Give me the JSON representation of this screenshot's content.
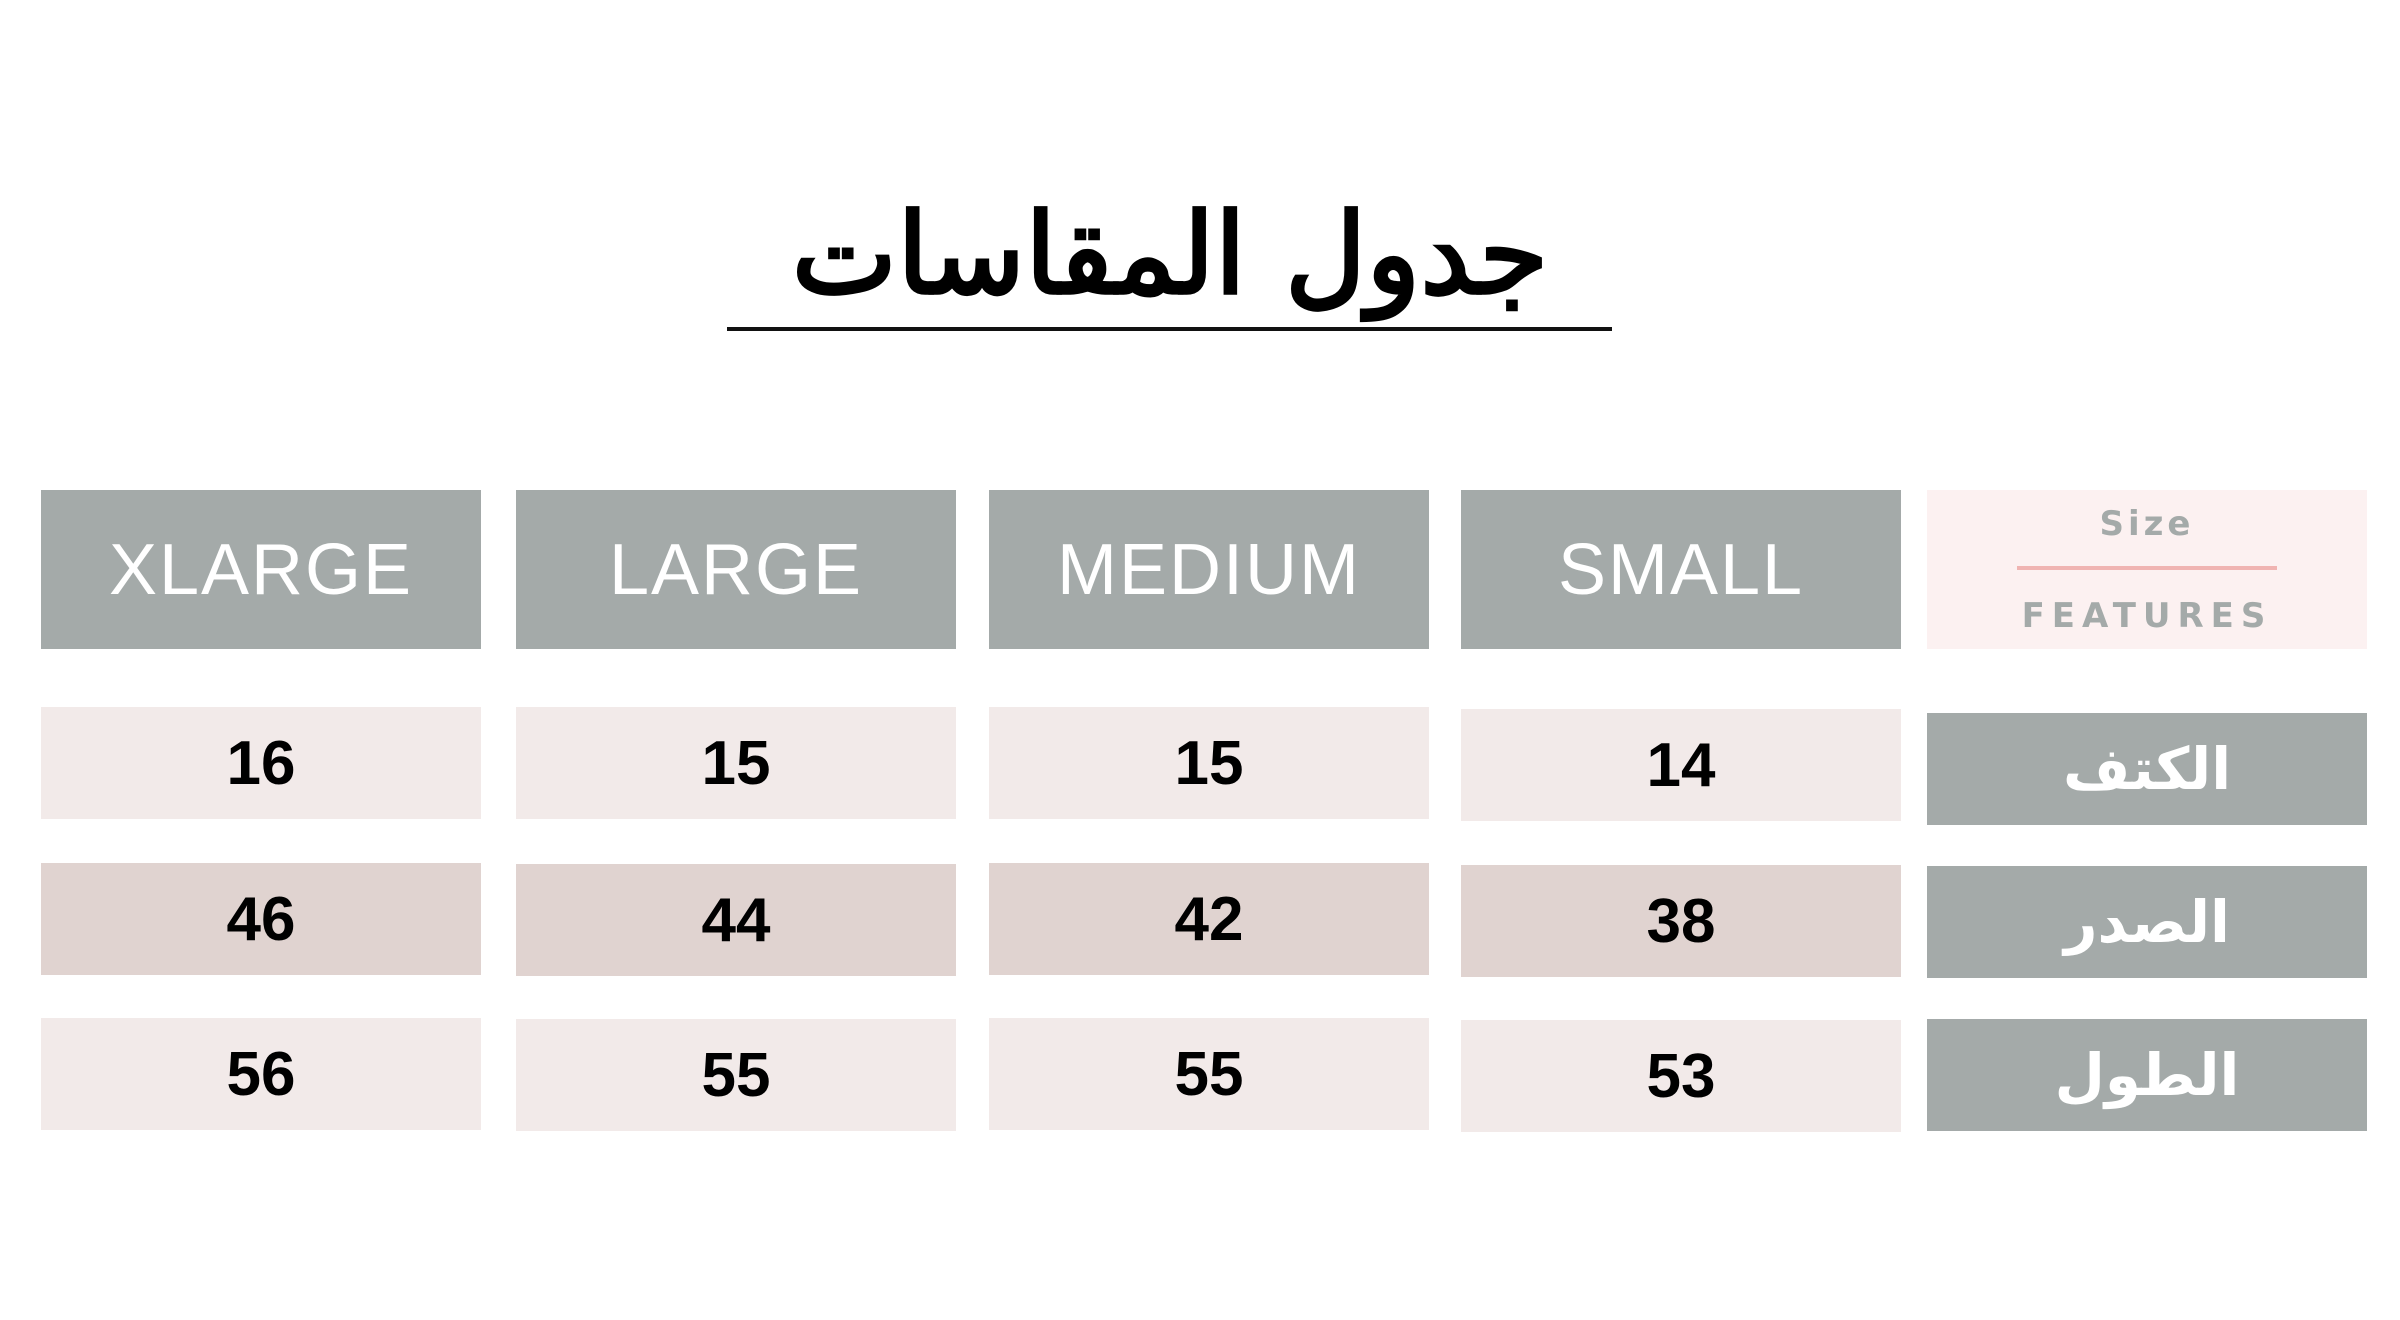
{
  "title": "جدول المقاسات",
  "corner": {
    "top": "Size",
    "bottom": "FEATURES"
  },
  "sizes": [
    "XLARGE",
    "LARGE",
    "MEDIUM",
    "SMALL"
  ],
  "features": [
    "الكتف",
    "الصدر",
    "الطول"
  ],
  "values": [
    [
      "16",
      "15",
      "15",
      "14"
    ],
    [
      "46",
      "44",
      "42",
      "38"
    ],
    [
      "56",
      "55",
      "55",
      "53"
    ]
  ],
  "colors": {
    "header": "#a4aaa9",
    "light_row": "#f2eae9",
    "dark_row": "#e0d3d0",
    "corner_bg": "#fcf1f1",
    "accent_line": "#f0b4b2"
  }
}
